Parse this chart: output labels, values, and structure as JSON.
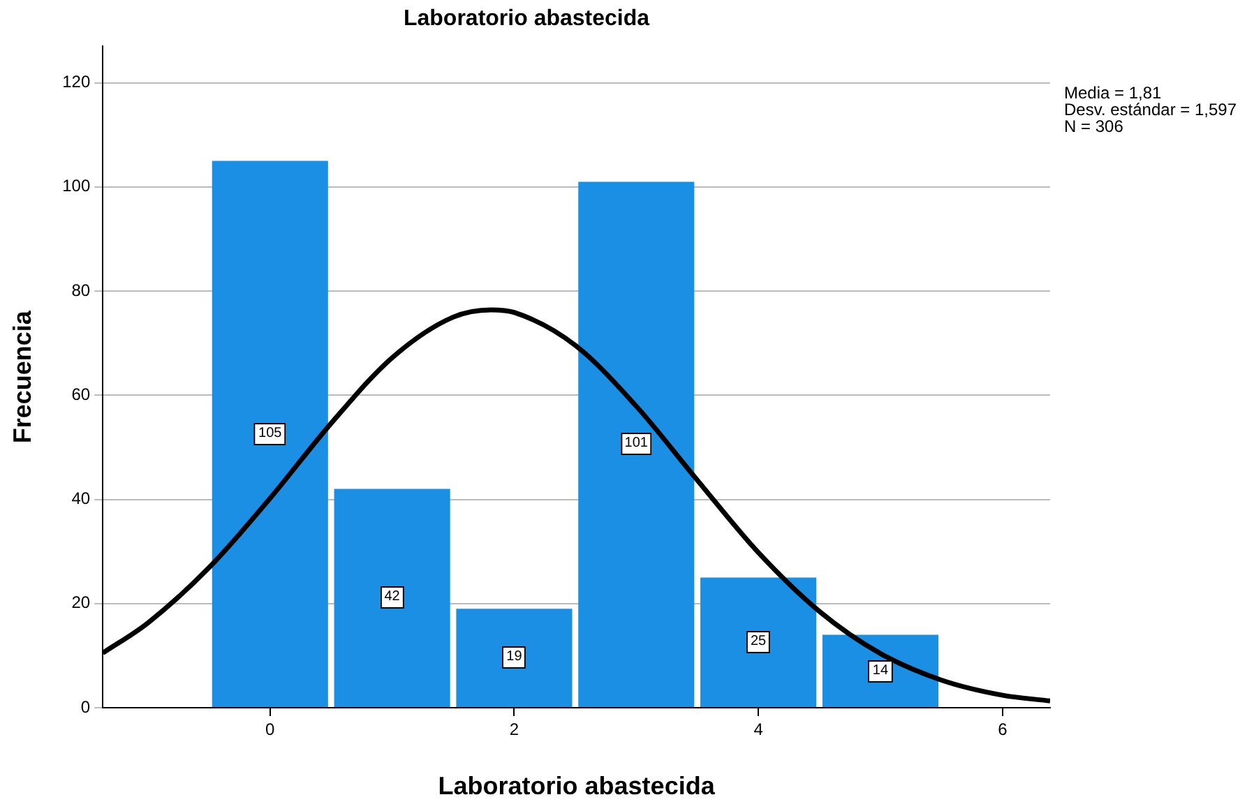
{
  "chart_data": {
    "type": "histogram",
    "title": "Laboratorio abastecida",
    "xlabel": "Laboratorio abastecida",
    "ylabel": "Frecuencia",
    "bins": [
      -0.5,
      0.5,
      1.5,
      2.5,
      3.5,
      4.5,
      5.5
    ],
    "values": [
      105,
      42,
      19,
      101,
      25,
      14
    ],
    "color": "#1a8fe3",
    "value_labels": [
      "105",
      "42",
      "19",
      "101",
      "25",
      "14"
    ],
    "series": [
      {
        "type": "line",
        "color": "#000000",
        "x": [
          -1.37,
          -1,
          -0.5,
          0,
          0.5,
          1,
          1.5,
          1.81,
          2,
          2.5,
          3,
          3.5,
          4,
          4.5,
          5,
          5.5,
          6,
          6.39
        ],
        "values": [
          10.5,
          16.3,
          26.9,
          40.2,
          54.6,
          67.2,
          75.0,
          76.4,
          75.9,
          69.6,
          57.9,
          43.7,
          29.8,
          18.5,
          10.4,
          5.3,
          2.4,
          1.3
        ]
      }
    ],
    "xlim": [
      -1.37,
      6.39
    ],
    "xticks": [
      0,
      2,
      4,
      6
    ],
    "ylim": [
      0,
      127
    ],
    "yticks": [
      0,
      20,
      40,
      60,
      80,
      100,
      120
    ],
    "grid": "y",
    "legend": false,
    "annotations": [
      "Media = 1,81",
      "Desv. estándar = 1,597",
      "N = 306"
    ]
  }
}
